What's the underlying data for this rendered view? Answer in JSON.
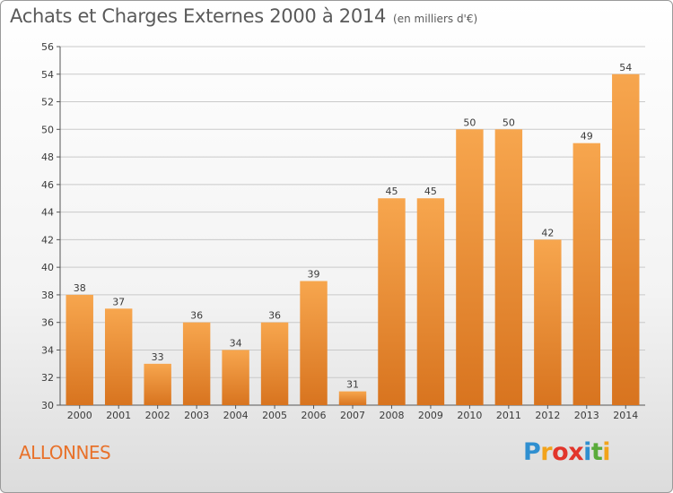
{
  "title": "Achats et Charges Externes 2000 à 2014",
  "subtitle": "(en milliers d'€)",
  "commune": "ALLONNES",
  "logo": {
    "letters": [
      "P",
      "r",
      "o",
      "x",
      "i",
      "t",
      "i"
    ],
    "colors": [
      "#2f8fd0",
      "#f2a31b",
      "#e2352b",
      "#e2352b",
      "#2f8fd0",
      "#5aab3a",
      "#f2a31b"
    ]
  },
  "colors": {
    "bar_light": "#f7a64e",
    "bar_dark": "#d8741f",
    "grid": "#c9c9c9",
    "axis": "#555555"
  },
  "chart_data": {
    "type": "bar",
    "title": "Achats et Charges Externes 2000 à 2014",
    "subtitle": "(en milliers d'€)",
    "categories": [
      "2000",
      "2001",
      "2002",
      "2003",
      "2004",
      "2005",
      "2006",
      "2007",
      "2008",
      "2009",
      "2010",
      "2011",
      "2012",
      "2013",
      "2014"
    ],
    "values": [
      38,
      37,
      33,
      36,
      34,
      36,
      39,
      31,
      45,
      45,
      50,
      50,
      42,
      49,
      54
    ],
    "ylim": [
      30,
      56
    ],
    "yticks": [
      30,
      32,
      34,
      36,
      38,
      40,
      42,
      44,
      46,
      48,
      50,
      52,
      54,
      56
    ],
    "grid": true,
    "data_labels": true
  }
}
